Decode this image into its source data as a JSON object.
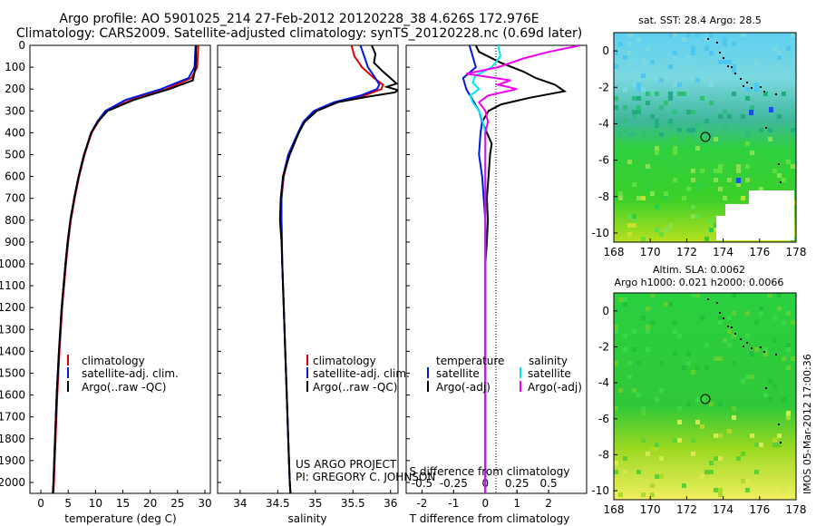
{
  "header": {
    "line1": "Argo profile: AO 5901025_214 27-Feb-2012 20120228_38 4.626S 172.976E",
    "line2": "Climatology: CARS2009. Satellite-adjusted climatology: synTS_20120228.nc (0.69d later)"
  },
  "colors": {
    "climatology": "#e00000",
    "satellite": "#0018e0",
    "argo": "#000000",
    "satellite_salinity": "#00e8f0",
    "argo_salinity": "#f000f0"
  },
  "panels": {
    "depth_ticks": [
      "0",
      "100",
      "200",
      "300",
      "400",
      "500",
      "600",
      "700",
      "800",
      "900",
      "1000",
      "1100",
      "1200",
      "1300",
      "1400",
      "1500",
      "1600",
      "1700",
      "1800",
      "1900",
      "2000"
    ],
    "temperature": {
      "xlabel": "temperature (deg C)",
      "ticks": [
        "0",
        "5",
        "10",
        "15",
        "20",
        "25",
        "30"
      ],
      "legend": [
        "climatology",
        "satellite-adj. clim.",
        "Argo(..raw -QC)"
      ]
    },
    "salinity": {
      "xlabel": "salinity",
      "ticks": [
        "34",
        "34.5",
        "35",
        "35.5",
        "36"
      ],
      "legend": [
        "climatology",
        "satellite-adj. clim.",
        "Argo(..raw -QC)"
      ],
      "credit1": "US ARGO PROJECT",
      "credit2": "PI: GREGORY C. JOHNSON"
    },
    "difference": {
      "xlabel_bottom": "T difference from climatology",
      "xlabel_top": "S difference from climatology",
      "ticks_bottom": [
        "-2",
        "-1",
        "0",
        "1",
        "2"
      ],
      "ticks_top": [
        "-0.5",
        "-0.25",
        "0",
        "0.25",
        "0.5"
      ],
      "legend_head_left": "temperature",
      "legend_head_right": "salinity",
      "legend_left": [
        "satellite",
        "Argo(-adj)"
      ],
      "legend_right": [
        "satellite",
        "Argo(-adj)"
      ]
    }
  },
  "maps": {
    "sst": {
      "title": "sat. SST: 28.4 Argo: 28.5"
    },
    "sla": {
      "title1": "Altim. SLA: 0.0062",
      "title2": "Argo h1000: 0.021 h2000: 0.0066"
    },
    "xticks": [
      "168",
      "170",
      "172",
      "174",
      "176",
      "178"
    ],
    "yticks": [
      "0",
      "-2",
      "-4",
      "-6",
      "-8",
      "-10"
    ],
    "float_position": {
      "lon": 172.976,
      "lat": -4.626
    }
  },
  "side_text": "IMOS 05-Mar-2012 17:00:36",
  "chart_data": [
    {
      "type": "line",
      "xlabel": "temperature (deg C)",
      "ylim": [
        2050,
        0
      ],
      "xlim": [
        -2,
        31
      ],
      "series": [
        {
          "name": "climatology",
          "depth": [
            0,
            100,
            150,
            200,
            250,
            300,
            350,
            400,
            500,
            600,
            700,
            800,
            900,
            1000,
            1200,
            1400,
            1600,
            1800,
            2000,
            2050
          ],
          "values": [
            28.8,
            28.6,
            27.5,
            23.0,
            16.5,
            12.0,
            10.5,
            9.3,
            8.0,
            7.0,
            6.2,
            5.5,
            5.0,
            4.6,
            3.9,
            3.4,
            3.0,
            2.7,
            2.4,
            2.3
          ]
        },
        {
          "name": "satellite-adj. clim.",
          "depth": [
            0,
            100,
            150,
            200,
            250,
            300,
            350,
            400,
            500,
            600,
            700,
            800,
            900,
            1000,
            1200,
            1400,
            1600,
            1800,
            2000,
            2050
          ],
          "values": [
            28.3,
            28.1,
            27.0,
            22.0,
            15.5,
            11.8,
            10.3,
            9.2,
            7.9,
            6.9,
            6.1,
            5.4,
            4.9,
            4.5,
            3.8,
            3.3,
            2.9,
            2.6,
            2.3,
            2.2
          ]
        },
        {
          "name": "Argo(..raw -QC)",
          "depth": [
            0,
            100,
            160,
            200,
            250,
            300,
            350,
            400,
            500,
            600,
            700,
            800,
            900,
            1000,
            1200,
            1400,
            1600,
            1800,
            2000,
            2050
          ],
          "values": [
            28.4,
            28.3,
            27.8,
            23.5,
            17.0,
            12.2,
            10.4,
            9.2,
            7.9,
            6.9,
            6.1,
            5.4,
            4.9,
            4.5,
            3.8,
            3.3,
            2.9,
            2.6,
            2.3,
            2.2
          ]
        }
      ]
    },
    {
      "type": "line",
      "xlabel": "salinity",
      "ylim": [
        2050,
        0
      ],
      "xlim": [
        33.7,
        36.1
      ],
      "series": [
        {
          "name": "climatology",
          "depth": [
            0,
            50,
            100,
            150,
            180,
            200,
            230,
            260,
            300,
            350,
            400,
            500,
            600,
            700,
            800,
            1000,
            1200,
            1400,
            1600,
            1800,
            2000,
            2050
          ],
          "values": [
            35.48,
            35.52,
            35.62,
            35.78,
            35.9,
            35.88,
            35.65,
            35.3,
            35.0,
            34.85,
            34.78,
            34.65,
            34.58,
            34.55,
            34.55,
            34.56,
            34.58,
            34.6,
            34.62,
            34.64,
            34.66,
            34.67
          ]
        },
        {
          "name": "satellite-adj. clim.",
          "depth": [
            0,
            50,
            100,
            150,
            180,
            200,
            230,
            260,
            300,
            350,
            400,
            500,
            600,
            700,
            800,
            1000,
            1200,
            1400,
            1600,
            1800,
            2000,
            2050
          ],
          "values": [
            35.6,
            35.65,
            35.7,
            35.8,
            35.85,
            35.82,
            35.6,
            35.25,
            34.98,
            34.84,
            34.77,
            34.64,
            34.57,
            34.55,
            34.55,
            34.56,
            34.58,
            34.6,
            34.62,
            34.64,
            34.66,
            34.67
          ]
        },
        {
          "name": "Argo(..raw -QC)",
          "depth": [
            0,
            40,
            80,
            120,
            150,
            175,
            190,
            205,
            215,
            235,
            260,
            300,
            350,
            400,
            500,
            600,
            700,
            800,
            900,
            1000,
            1200,
            1400,
            1600,
            1800,
            2000,
            2050
          ],
          "values": [
            35.75,
            35.8,
            35.78,
            35.9,
            36.0,
            36.08,
            35.95,
            36.1,
            36.06,
            35.7,
            35.3,
            35.02,
            34.86,
            34.78,
            34.66,
            34.57,
            34.54,
            34.53,
            34.55,
            34.56,
            34.58,
            34.6,
            34.62,
            34.64,
            34.66,
            34.67
          ]
        }
      ]
    },
    {
      "type": "line",
      "xlabel": "T difference from climatology",
      "ylim": [
        2050,
        0
      ],
      "xlim": [
        -2.5,
        3.2
      ],
      "series": [
        {
          "name": "temperature satellite",
          "depth": [
            0,
            50,
            100,
            150,
            200,
            250,
            300,
            350,
            400,
            500,
            600,
            700,
            800,
            900,
            1000,
            1200,
            1400,
            1600,
            1800,
            2000,
            2050
          ],
          "values": [
            -0.5,
            -0.4,
            -0.3,
            -0.7,
            -0.6,
            -0.4,
            -0.2,
            -0.1,
            -0.15,
            -0.2,
            -0.1,
            -0.05,
            0,
            0,
            0,
            0,
            0,
            0,
            0,
            0,
            0
          ]
        },
        {
          "name": "temperature Argo(-adj)",
          "depth": [
            0,
            30,
            80,
            120,
            150,
            180,
            210,
            240,
            270,
            300,
            350,
            400,
            450,
            500,
            600,
            700,
            800,
            900,
            1000,
            1200,
            1400,
            1600,
            1800,
            2000,
            2050
          ],
          "values": [
            -0.3,
            -0.2,
            0.5,
            1.2,
            1.6,
            2.2,
            2.5,
            1.4,
            0.5,
            0.1,
            -0.1,
            0.05,
            0.2,
            0.15,
            0.1,
            0.05,
            0.08,
            0.05,
            0,
            0,
            0,
            0,
            0,
            0,
            0
          ]
        }
      ]
    },
    {
      "type": "line",
      "xlabel": "S difference from climatology",
      "ylim": [
        2050,
        0
      ],
      "xlim": [
        -0.625,
        0.8
      ],
      "series": [
        {
          "name": "salinity satellite",
          "depth": [
            0,
            50,
            100,
            140,
            170,
            200,
            230,
            260,
            300,
            350,
            400,
            500,
            700,
            1000,
            1500,
            2000,
            2050
          ],
          "values": [
            0.1,
            0.12,
            0.05,
            -0.08,
            -0.1,
            -0.05,
            -0.12,
            -0.1,
            -0.05,
            -0.02,
            0,
            0,
            0,
            0,
            0,
            0,
            0
          ]
        },
        {
          "name": "salinity Argo(-adj)",
          "depth": [
            0,
            30,
            60,
            100,
            130,
            160,
            180,
            200,
            230,
            260,
            300,
            350,
            400,
            500,
            700,
            1000,
            1500,
            2000,
            2050
          ],
          "values": [
            0.75,
            0.5,
            0.3,
            0.1,
            -0.15,
            0.2,
            0.1,
            0.25,
            0.02,
            -0.05,
            0.0,
            0.02,
            0,
            0,
            0,
            0,
            0,
            0,
            0
          ]
        }
      ]
    }
  ]
}
